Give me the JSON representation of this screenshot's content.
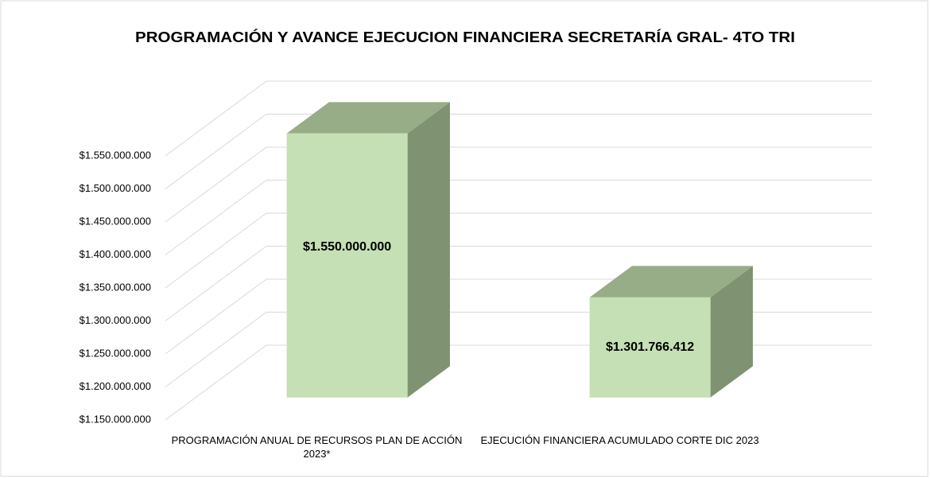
{
  "chart_data": {
    "type": "bar3d",
    "title": "PROGRAMACIÓN Y AVANCE EJECUCION FINANCIERA SECRETARÍA GRAL- 4TO TRI",
    "categories": [
      "PROGRAMACIÓN ANUAL DE RECURSOS PLAN DE ACCIÓN 2023*",
      "EJECUCIÓN FINANCIERA ACUMULADO CORTE DIC 2023"
    ],
    "values": [
      1550000000,
      1301766412
    ],
    "value_labels": [
      "$1.550.000.000",
      "$1.301.766.412"
    ],
    "color": "#c5e0b4",
    "ylim": [
      1150000000,
      1550000000
    ],
    "yticks": [
      {
        "value": 1150000000,
        "label": "$1.150.000.000"
      },
      {
        "value": 1200000000,
        "label": "$1.200.000.000"
      },
      {
        "value": 1250000000,
        "label": "$1.250.000.000"
      },
      {
        "value": 1300000000,
        "label": "$1.300.000.000"
      },
      {
        "value": 1350000000,
        "label": "$1.350.000.000"
      },
      {
        "value": 1400000000,
        "label": "$1.400.000.000"
      },
      {
        "value": 1450000000,
        "label": "$1.450.000.000"
      },
      {
        "value": 1500000000,
        "label": "$1.500.000.000"
      },
      {
        "value": 1550000000,
        "label": "$1.550.000.000"
      }
    ],
    "grid": true
  }
}
